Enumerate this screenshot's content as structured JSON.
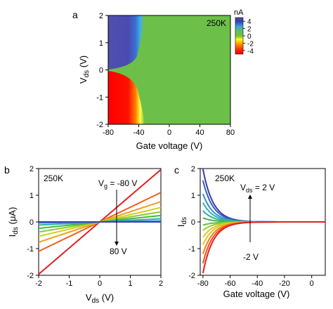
{
  "panels": {
    "a": "a",
    "b": "b",
    "c": "c"
  },
  "chart_data": [
    {
      "type": "heatmap",
      "panel": "a",
      "title": "250K",
      "xlabel": "Gate voltage (V)",
      "ylabel_main": "V",
      "ylabel_sub": "ds",
      "ylabel_tail": " (V)",
      "xlim": [
        -80,
        80
      ],
      "ylim": [
        -2,
        2
      ],
      "xticks": [
        "-80",
        "-40",
        "0",
        "40",
        "80"
      ],
      "yticks": [
        "2",
        "1",
        "0",
        "-1",
        "-2"
      ],
      "colorbar": {
        "unit": "nA",
        "ticks": [
          "4",
          "2",
          "0",
          "-2",
          "-4"
        ],
        "range": [
          -5,
          5
        ],
        "colors": [
          "#ff0000",
          "#ff8000",
          "#ffff00",
          "#6cc04a",
          "#3ba8e0",
          "#3a3aa8",
          "#5050b0"
        ]
      },
      "description_values": {
        "on_region_gate_below": -45,
        "positive_current_region": "V_ds > 0, gate < -45 V",
        "negative_current_region": "V_ds < 0, gate < -45 V"
      }
    },
    {
      "type": "line",
      "panel": "b",
      "title": "250K",
      "xlabel_main": "V",
      "xlabel_sub": "ds",
      "xlabel_tail": " (V)",
      "ylabel_main": "I",
      "ylabel_sub": "ds",
      "ylabel_tail": " (μA)",
      "xlim": [
        -2,
        2
      ],
      "ylim": [
        -2,
        2
      ],
      "xticks": [
        "-2",
        "-1",
        "0",
        "1",
        "2"
      ],
      "yticks": [
        "2",
        "1",
        "0",
        "-1",
        "-2"
      ],
      "annotation_top_main": "V",
      "annotation_top_sub": "g",
      "annotation_top_tail": " = -80 V",
      "annotation_bottom": "80 V",
      "series": [
        {
          "gate": -80,
          "slope": 0.98,
          "color": "#e02020"
        },
        {
          "gate": -70,
          "slope": 0.55,
          "color": "#f06020"
        },
        {
          "gate": -60,
          "slope": 0.38,
          "color": "#f0a020"
        },
        {
          "gate": -50,
          "slope": 0.27,
          "color": "#d0d020"
        },
        {
          "gate": -40,
          "slope": 0.19,
          "color": "#90c830"
        },
        {
          "gate": -30,
          "slope": 0.12,
          "color": "#40b840"
        },
        {
          "gate": -20,
          "slope": 0.06,
          "color": "#30b0a0"
        },
        {
          "gate": 0,
          "slope": 0.02,
          "color": "#3090d0"
        },
        {
          "gate": 80,
          "slope": 0.0,
          "color": "#4040b0"
        }
      ]
    },
    {
      "type": "line",
      "panel": "c",
      "title": "250K",
      "xlabel": "Gate voltage (V)",
      "ylabel_main": "I",
      "ylabel_sub": "ds",
      "ylabel_tail": "",
      "xlim": [
        -82,
        10
      ],
      "ylim": [
        -2,
        2
      ],
      "xticks": [
        "-80",
        "-60",
        "-40",
        "-20",
        "0"
      ],
      "yticks": [
        "2",
        "1",
        "0",
        "-1",
        "-2"
      ],
      "annotation_top_main": "V",
      "annotation_top_sub": "ds",
      "annotation_top_tail": " = 2 V",
      "annotation_bottom": "-2 V",
      "series": [
        {
          "vds": 2.0,
          "amp": 1.98,
          "color": "#3a3aa8"
        },
        {
          "vds": 1.5,
          "amp": 1.55,
          "color": "#3060c0"
        },
        {
          "vds": 1.0,
          "amp": 1.05,
          "color": "#3090d0"
        },
        {
          "vds": 0.75,
          "amp": 0.72,
          "color": "#30b0c0"
        },
        {
          "vds": 0.5,
          "amp": 0.42,
          "color": "#30b090"
        },
        {
          "vds": 0.25,
          "amp": 0.15,
          "color": "#40b840"
        },
        {
          "vds": -0.25,
          "amp": -0.12,
          "color": "#60c040"
        },
        {
          "vds": -0.5,
          "amp": -0.32,
          "color": "#a0c830"
        },
        {
          "vds": -0.75,
          "amp": -0.58,
          "color": "#d0d020"
        },
        {
          "vds": -1.0,
          "amp": -0.85,
          "color": "#f0c020"
        },
        {
          "vds": -1.5,
          "amp": -1.2,
          "color": "#f08020"
        },
        {
          "vds": -1.75,
          "amp": -1.55,
          "color": "#f05020"
        },
        {
          "vds": -2.0,
          "amp": -1.92,
          "color": "#e02020"
        }
      ]
    }
  ]
}
